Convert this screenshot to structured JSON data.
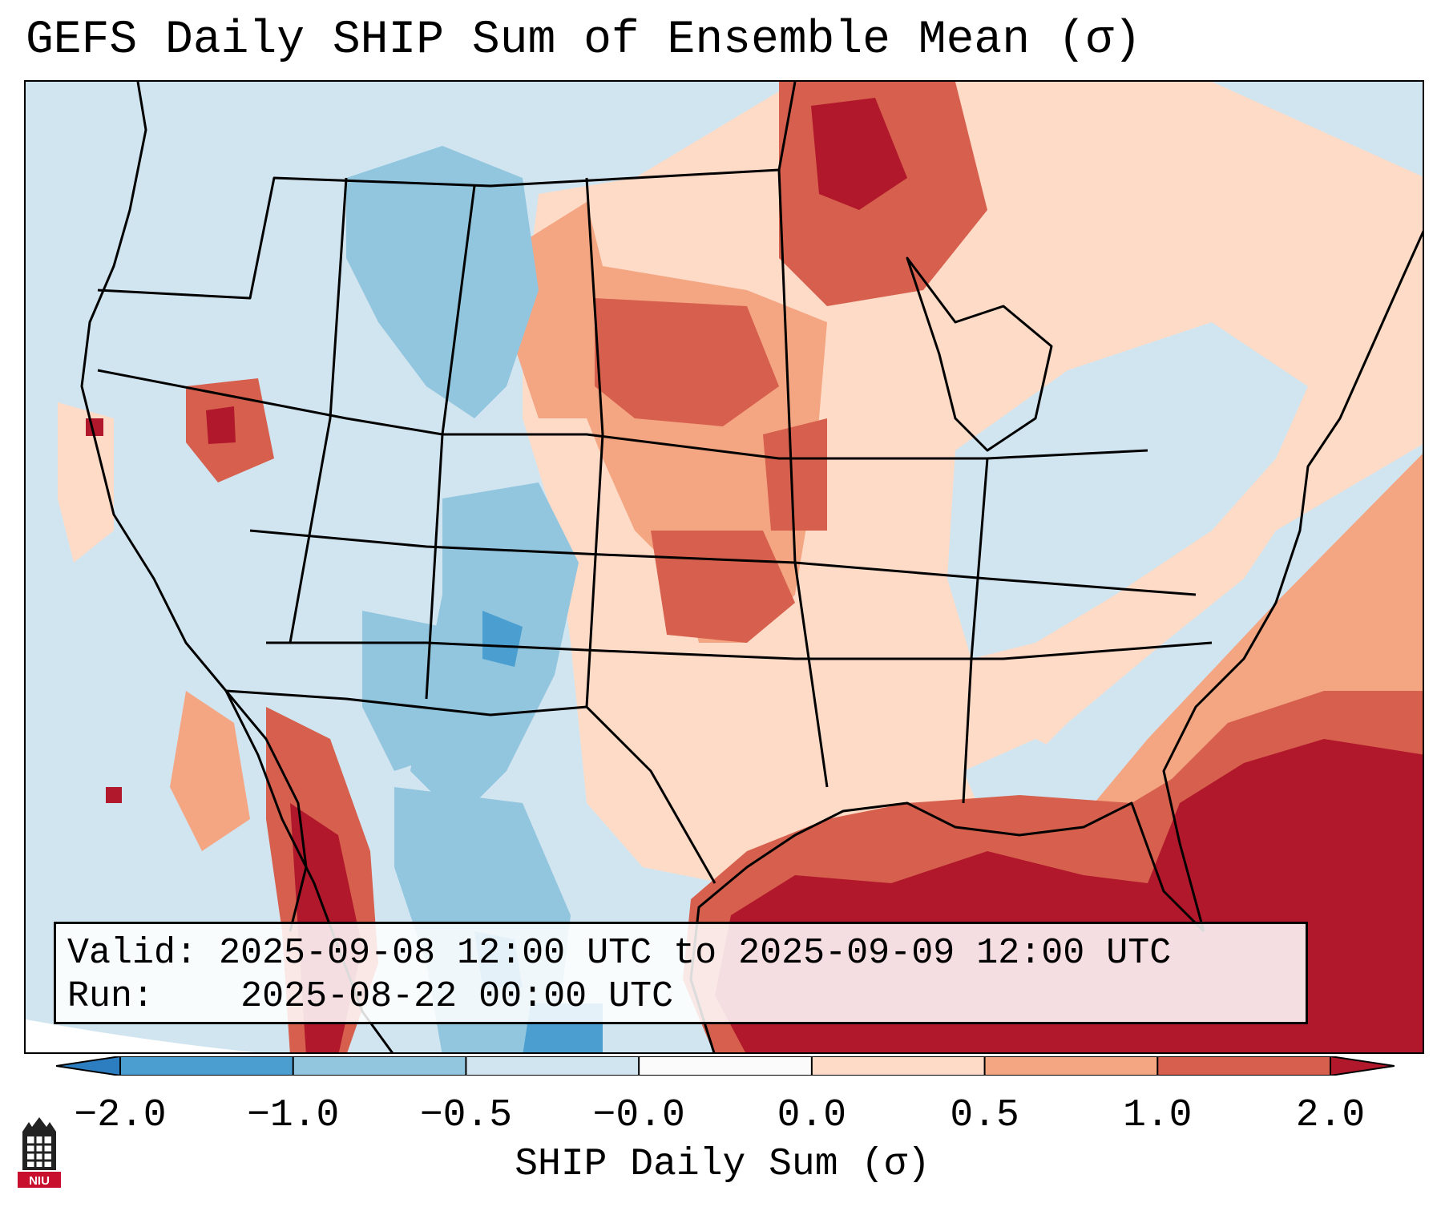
{
  "title": "GEFS Daily SHIP Sum of Ensemble Mean (σ)",
  "info": {
    "valid_label": "Valid:",
    "valid_value": "2025-09-08 12:00 UTC to 2025-09-09 12:00 UTC",
    "run_label": "Run:",
    "run_value": "2025-08-22 00:00 UTC"
  },
  "colorbar": {
    "label": "SHIP Daily Sum (σ)",
    "ticks": [
      "−2.0",
      "−1.0",
      "−0.5",
      "−0.0",
      "0.0",
      "0.5",
      "1.0",
      "2.0"
    ],
    "colors": [
      "#2d7ec0",
      "#4a9fd0",
      "#92c5de",
      "#d1e5f0",
      "#fbfbfb",
      "#fddbc7",
      "#f4a582",
      "#d6604d",
      "#b2182b"
    ]
  },
  "logo": {
    "text": "NIU",
    "accent": "#c8102e"
  }
}
